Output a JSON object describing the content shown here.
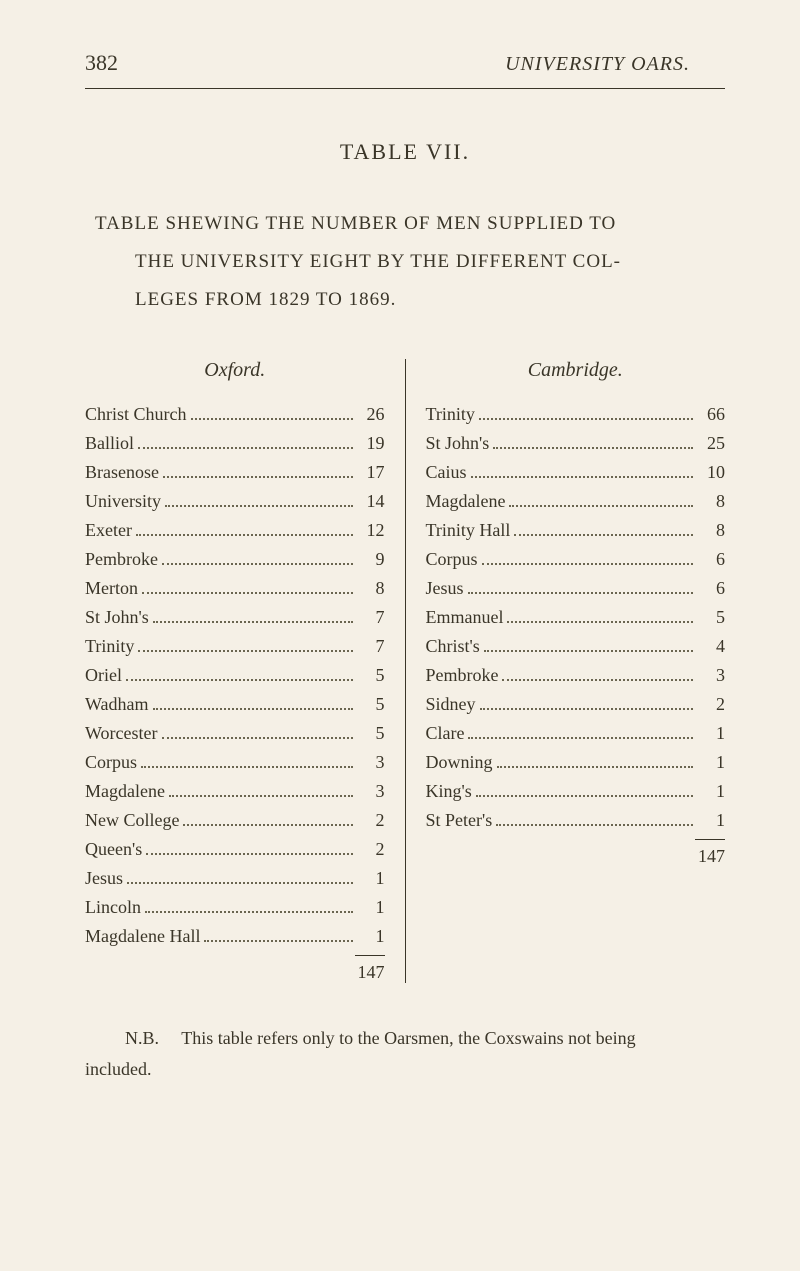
{
  "page_number": "382",
  "running_title": "UNIVERSITY OARS.",
  "table_title": "TABLE VII.",
  "description_line1": "TABLE SHEWING THE NUMBER OF MEN SUPPLIED TO",
  "description_line2": "THE UNIVERSITY EIGHT BY THE DIFFERENT COL-",
  "description_line3": "LEGES FROM 1829 TO 1869.",
  "left": {
    "header": "Oxford.",
    "items": [
      {
        "label": "Christ Church",
        "value": "26"
      },
      {
        "label": "Balliol",
        "value": "19"
      },
      {
        "label": "Brasenose",
        "value": "17"
      },
      {
        "label": "University",
        "value": "14"
      },
      {
        "label": "Exeter",
        "value": "12"
      },
      {
        "label": "Pembroke",
        "value": "9"
      },
      {
        "label": "Merton",
        "value": "8"
      },
      {
        "label": "St John's",
        "value": "7"
      },
      {
        "label": "Trinity",
        "value": "7"
      },
      {
        "label": "Oriel",
        "value": "5"
      },
      {
        "label": "Wadham",
        "value": "5"
      },
      {
        "label": "Worcester",
        "value": "5"
      },
      {
        "label": "Corpus",
        "value": "3"
      },
      {
        "label": "Magdalene",
        "value": "3"
      },
      {
        "label": "New College",
        "value": "2"
      },
      {
        "label": "Queen's",
        "value": "2"
      },
      {
        "label": "Jesus",
        "value": "1"
      },
      {
        "label": "Lincoln",
        "value": "1"
      },
      {
        "label": "Magdalene Hall",
        "value": "1"
      }
    ],
    "total": "147"
  },
  "right": {
    "header": "Cambridge.",
    "items": [
      {
        "label": "Trinity",
        "value": "66"
      },
      {
        "label": "St John's",
        "value": "25"
      },
      {
        "label": "Caius",
        "value": "10"
      },
      {
        "label": "Magdalene",
        "value": "8"
      },
      {
        "label": "Trinity Hall",
        "value": "8"
      },
      {
        "label": "Corpus",
        "value": "6"
      },
      {
        "label": "Jesus",
        "value": "6"
      },
      {
        "label": "Emmanuel",
        "value": "5"
      },
      {
        "label": "Christ's",
        "value": "4"
      },
      {
        "label": "Pembroke",
        "value": "3"
      },
      {
        "label": "Sidney",
        "value": "2"
      },
      {
        "label": "Clare",
        "value": "1"
      },
      {
        "label": "Downing",
        "value": "1"
      },
      {
        "label": "King's",
        "value": "1"
      },
      {
        "label": "St Peter's",
        "value": "1"
      }
    ],
    "total": "147"
  },
  "footnote_prefix": "N.B.",
  "footnote_text": "This table refers only to the Oarsmen, the Coxswains not being",
  "footnote_line2": "included."
}
